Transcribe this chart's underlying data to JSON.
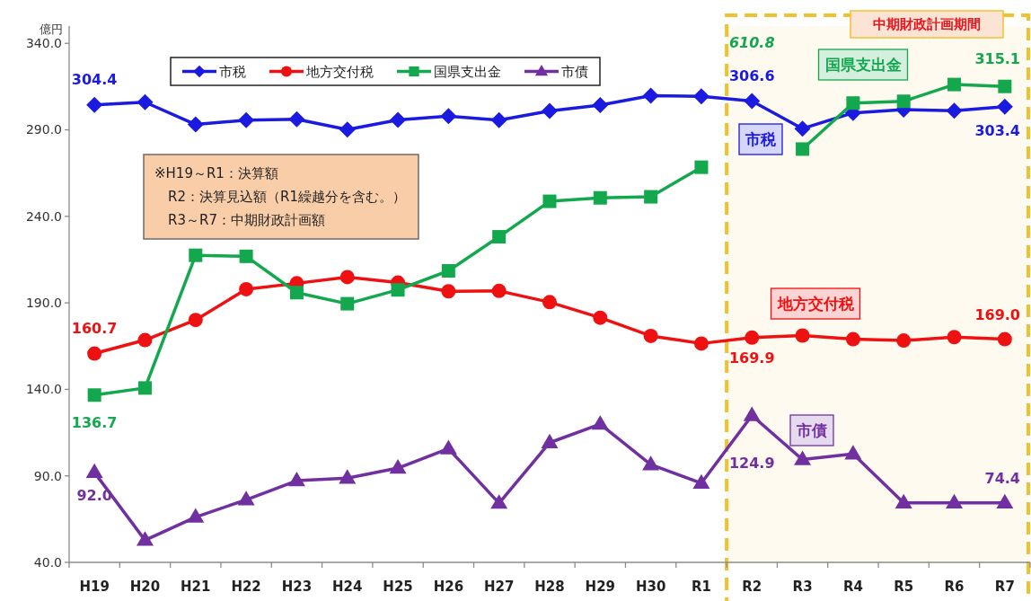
{
  "chart_data": {
    "type": "line",
    "ylabel": "億円",
    "categories": [
      "H19",
      "H20",
      "H21",
      "H22",
      "H23",
      "H24",
      "H25",
      "H26",
      "H27",
      "H28",
      "H29",
      "H30",
      "R1",
      "R2",
      "R3",
      "R4",
      "R5",
      "R6",
      "R7"
    ],
    "ylim": [
      40,
      350
    ],
    "yticks": [
      {
        "value": 40,
        "label": "40.0"
      },
      {
        "value": 90,
        "label": "90.0"
      },
      {
        "value": 140,
        "label": "140.0"
      },
      {
        "value": 190,
        "label": "190.0"
      },
      {
        "value": 240,
        "label": "240.0"
      },
      {
        "value": 290,
        "label": "290.0"
      },
      {
        "value": 340,
        "label": "340.0"
      }
    ],
    "legend": "top left",
    "series": [
      {
        "name": "市税",
        "color": "#1a1ae0",
        "marker": "diamond",
        "values": [
          304.4,
          306.0,
          293.1,
          295.6,
          296.1,
          290.2,
          295.7,
          297.9,
          295.6,
          300.9,
          304.3,
          309.8,
          309.4,
          306.6,
          290.7,
          299.8,
          301.7,
          301.1,
          303.4
        ],
        "value_labels": [
          "304.4",
          null,
          null,
          null,
          null,
          null,
          null,
          null,
          null,
          null,
          null,
          null,
          null,
          "306.6",
          null,
          null,
          null,
          null,
          "303.4"
        ]
      },
      {
        "name": "地方交付税",
        "color": "#ee1111",
        "marker": "circle",
        "values": [
          160.7,
          168.5,
          180.1,
          197.9,
          201.3,
          204.9,
          201.7,
          196.7,
          196.9,
          190.4,
          181.4,
          170.9,
          166.5,
          169.9,
          171.1,
          169.0,
          168.2,
          170.2,
          169.0
        ],
        "value_labels": [
          "160.7",
          null,
          null,
          null,
          null,
          null,
          null,
          null,
          null,
          null,
          null,
          null,
          null,
          "169.9",
          null,
          null,
          null,
          null,
          "169.0"
        ]
      },
      {
        "name": "国県支出金",
        "color": "#13a84e",
        "marker": "square",
        "values": [
          136.7,
          140.8,
          217.5,
          216.9,
          195.9,
          189.5,
          197.5,
          208.5,
          228.2,
          248.7,
          250.7,
          251.3,
          268.4,
          null,
          278.9,
          305.5,
          306.5,
          316.2,
          315.1
        ],
        "value_labels": [
          "136.7",
          null,
          null,
          null,
          null,
          null,
          null,
          null,
          null,
          null,
          null,
          null,
          null,
          "610.8",
          null,
          null,
          null,
          null,
          "315.1"
        ]
      },
      {
        "name": "市債",
        "color": "#7030a0",
        "marker": "triangle",
        "values": [
          92.0,
          52.8,
          66.2,
          76.2,
          87.2,
          88.7,
          94.5,
          105.7,
          74.2,
          109.2,
          119.9,
          96.5,
          85.8,
          124.9,
          99.4,
          102.7,
          74.4,
          74.4,
          74.4
        ],
        "value_labels": [
          "92.0",
          null,
          null,
          null,
          null,
          null,
          null,
          null,
          null,
          null,
          null,
          null,
          null,
          "124.9",
          null,
          null,
          null,
          null,
          "74.4"
        ]
      }
    ],
    "bands": [
      {
        "axis": "x",
        "from": "R2",
        "to": "R7",
        "label": "中期財政計画期間",
        "color": "#f2c12e"
      }
    ],
    "annotations": [
      "※H19～R1：決算額\n　R2：決算見込額（R1繰越分を含む。）\n　R3～R7：中期財政計画額",
      "市税",
      "国県支出金",
      "地方交付税",
      "市債"
    ]
  }
}
